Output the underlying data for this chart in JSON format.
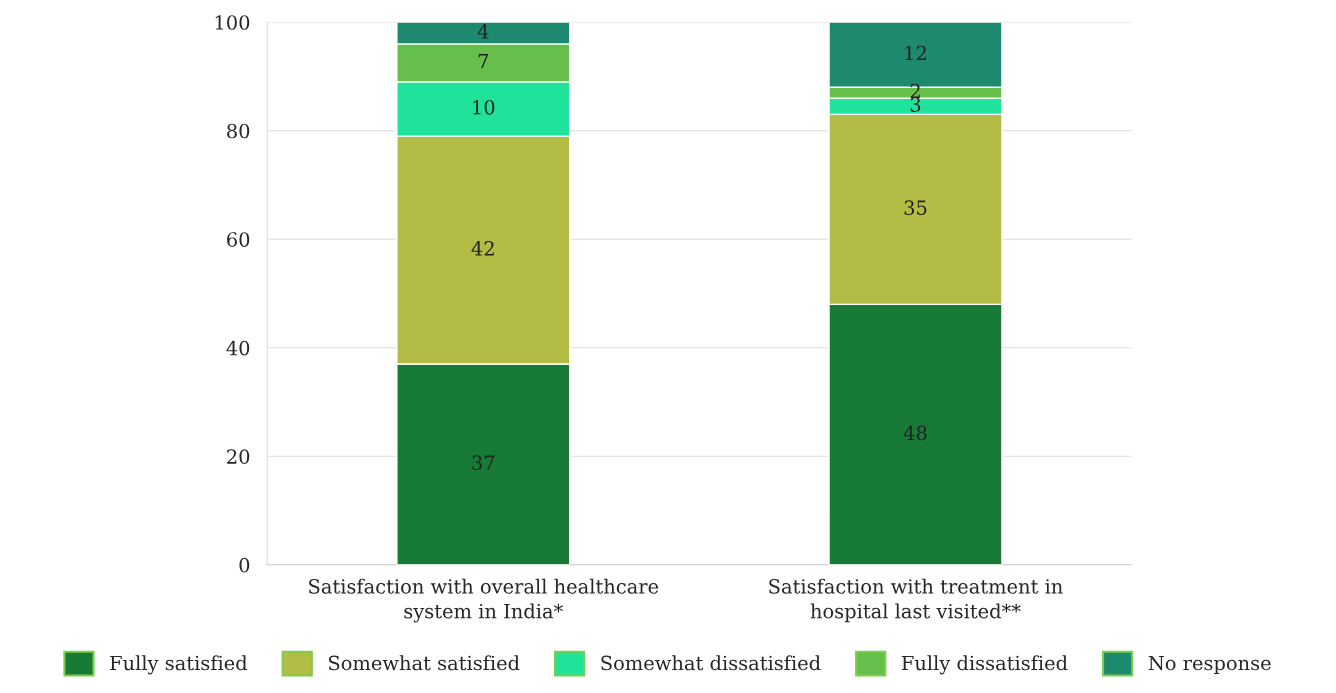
{
  "chart_data": {
    "type": "bar",
    "stacked": true,
    "categories": [
      "Satisfaction with overall healthcare system in India*",
      "Satisfaction with treatment in hospital last visited**"
    ],
    "series": [
      {
        "name": "Fully satisfied",
        "color": "#177b37",
        "values": [
          37,
          48
        ]
      },
      {
        "name": "Somewhat satisfied",
        "color": "#b3bd46",
        "values": [
          42,
          35
        ]
      },
      {
        "name": "Somewhat dissatisfied",
        "color": "#1fe39a",
        "values": [
          10,
          3
        ]
      },
      {
        "name": "Fully dissatisfied",
        "color": "#66bf4a",
        "values": [
          7,
          2
        ]
      },
      {
        "name": "No response",
        "color": "#1d8a70",
        "values": [
          4,
          12
        ]
      }
    ],
    "ylim": [
      0,
      100
    ],
    "yticks": [
      0,
      20,
      40,
      60,
      80,
      100
    ],
    "grid": "y",
    "legend": "bottom",
    "data_labels": true
  }
}
